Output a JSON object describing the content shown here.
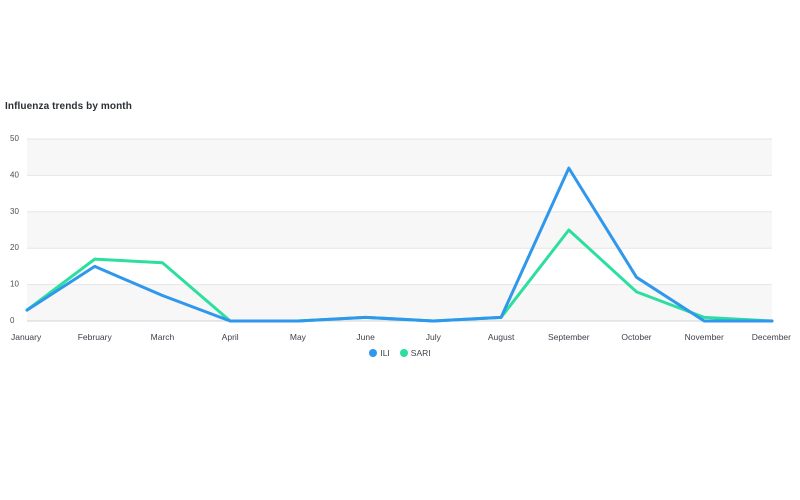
{
  "chart_data": {
    "type": "line",
    "title": "Influenza trends by month",
    "xlabel": "",
    "ylabel": "",
    "categories": [
      "January",
      "February",
      "March",
      "April",
      "May",
      "June",
      "July",
      "August",
      "September",
      "October",
      "November",
      "December"
    ],
    "yticks": [
      0,
      10,
      20,
      30,
      40,
      50
    ],
    "ylim": [
      0,
      50
    ],
    "grid": true,
    "legend_position": "bottom",
    "series": [
      {
        "name": "ILI",
        "color": "#2f97ec",
        "values": [
          3,
          15,
          7,
          0,
          0,
          1,
          0,
          1,
          42,
          12,
          0,
          0
        ]
      },
      {
        "name": "SARI",
        "color": "#2ddf9e",
        "values": [
          3,
          17,
          16,
          0,
          0,
          1,
          0,
          1,
          25,
          8,
          1,
          0
        ]
      }
    ]
  }
}
